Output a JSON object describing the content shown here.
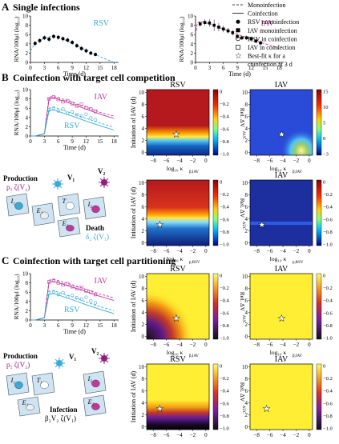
{
  "sections": {
    "a": {
      "letter": "A",
      "title": "Single infections"
    },
    "b": {
      "letter": "B",
      "title": "Coinfection with target cell competition"
    },
    "c": {
      "letter": "C",
      "title": "Coinfection with target cell partitioning"
    }
  },
  "legend": {
    "mono_line": "Monoinfection",
    "co_line": "Coinfection",
    "rsv_mono": "RSV monoinfection",
    "iav_mono": "IAV monoinfection",
    "rsv_co": "RSV in coinfection",
    "iav_co": "IAV in coinfection",
    "star_line1": "Best-fit κ for a",
    "star_line2": "coinfection at 3 d"
  },
  "timecourse": {
    "ylabel": "RNA/100μl (log₁₀)",
    "xlabel": "Time (d)",
    "yticks": [
      "0",
      "2",
      "4",
      "6",
      "8",
      "10"
    ],
    "xticks": [
      "0",
      "3",
      "6",
      "9",
      "12",
      "15",
      "18"
    ],
    "rsv_label": "RSV",
    "iav_label": "IAV",
    "colors": {
      "rsv": "#3aa9d6",
      "iav": "#c0399a"
    }
  },
  "chart_data": [
    {
      "type": "scatter",
      "title": "",
      "label": "RSV",
      "xlabel": "Time (d)",
      "ylabel": "RNA/100μl (log₁₀)",
      "xlim": [
        0,
        19
      ],
      "ylim": [
        0,
        10
      ],
      "series": [
        {
          "name": "RSV monoinfection",
          "x": [
            1,
            2,
            3,
            4,
            5,
            6,
            7,
            8,
            9,
            10,
            11,
            12,
            13,
            14
          ],
          "y": [
            4.1,
            4.7,
            5.3,
            5.0,
            5.6,
            5.4,
            5.1,
            4.8,
            4.3,
            3.6,
            3.0,
            2.5,
            2.0,
            1.7
          ],
          "err": [
            0.5,
            0.5,
            0.5,
            0.6,
            0.5,
            0.5,
            0.5,
            0.5,
            0.5,
            0.5,
            0.5,
            0.5,
            0.4,
            0.4
          ]
        }
      ],
      "model": {
        "x": [
          0,
          0.5,
          1,
          2,
          3,
          4,
          5,
          5.5,
          6,
          8,
          10,
          12,
          14,
          16,
          18
        ],
        "y": [
          2.5,
          3.3,
          3.9,
          4.7,
          5.2,
          5.5,
          5.6,
          5.55,
          5.4,
          4.6,
          3.6,
          2.6,
          1.7,
          0.8,
          0.0
        ]
      }
    },
    {
      "type": "scatter",
      "title": "",
      "label": "IAV",
      "xlabel": "Time (d)",
      "ylabel": "RNA/100μl (log₁₀)",
      "xlim": [
        0,
        19
      ],
      "ylim": [
        0,
        10
      ],
      "series": [
        {
          "name": "IAV monoinfection",
          "x": [
            1,
            2,
            3,
            4,
            5,
            6,
            7,
            8,
            9,
            10,
            11,
            12,
            13,
            14
          ],
          "y": [
            8.3,
            8.6,
            8.5,
            8.0,
            7.6,
            7.2,
            6.8,
            6.4,
            5.6,
            5.3,
            5.3,
            5.1,
            4.6,
            4.2
          ],
          "err": [
            0.6,
            0.7,
            0.8,
            1.2,
            0.9,
            0.7,
            0.6,
            0.6,
            0.5,
            0.5,
            0.5,
            0.5,
            0.5,
            0.5
          ]
        }
      ],
      "model": {
        "x": [
          0,
          0.4,
          1,
          2,
          4,
          6,
          8,
          10,
          12,
          14,
          16,
          18
        ],
        "y": [
          6.0,
          8.5,
          8.8,
          8.6,
          7.9,
          7.2,
          6.5,
          5.7,
          5.0,
          4.3,
          3.7,
          3.0
        ]
      }
    },
    {
      "type": "line",
      "title": "",
      "label": "Competition fit",
      "xlabel": "Time (d)",
      "ylabel": "RNA/100μl (log₁₀)",
      "xlim": [
        0,
        19
      ],
      "ylim": [
        0,
        10
      ],
      "series": [
        {
          "name": "IAV monoinfection",
          "x": [
            0,
            1,
            3,
            4,
            5,
            6,
            9,
            12,
            15,
            18
          ],
          "y": [
            0,
            0,
            0.5,
            8.4,
            8.5,
            8.3,
            7.3,
            6.2,
            5.1,
            4.3
          ]
        },
        {
          "name": "IAV in coinfection",
          "x": [
            0,
            1,
            3,
            4,
            5,
            6,
            9,
            12,
            15,
            18
          ],
          "y": [
            0,
            0,
            0.5,
            8.0,
            8.2,
            7.9,
            6.9,
            5.8,
            4.7,
            3.8
          ]
        },
        {
          "name": "RSV monoinfection",
          "x": [
            0,
            1,
            3,
            4,
            5,
            6,
            9,
            12,
            15,
            18
          ],
          "y": [
            0,
            0,
            0.5,
            6.0,
            6.2,
            5.9,
            4.9,
            3.8,
            2.8,
            1.9
          ]
        },
        {
          "name": "RSV in coinfection",
          "x": [
            0,
            1,
            3,
            4,
            5,
            6,
            9,
            12,
            15,
            18
          ],
          "y": [
            0,
            0,
            0.5,
            5.5,
            5.6,
            5.3,
            4.3,
            3.2,
            2.2,
            1.3
          ]
        }
      ],
      "points": {
        "iav_x": [
          4,
          5,
          6,
          7,
          8,
          9,
          10,
          11,
          12,
          13,
          14
        ],
        "iav_y": [
          8.0,
          8.4,
          7.9,
          7.4,
          7.6,
          7.0,
          6.5,
          6.8,
          6.1,
          5.8,
          5.3
        ],
        "rsv_x": [
          4,
          5,
          6,
          7,
          8,
          9,
          10,
          11,
          12,
          13,
          14
        ],
        "rsv_y": [
          5.6,
          6.0,
          5.4,
          5.8,
          4.9,
          5.2,
          4.6,
          4.3,
          4.7,
          3.9,
          3.5
        ]
      }
    },
    {
      "type": "line",
      "title": "",
      "label": "Partitioning fit",
      "xlabel": "Time (d)",
      "ylabel": "RNA/100μl (log₁₀)",
      "xlim": [
        0,
        19
      ],
      "ylim": [
        0,
        10
      ],
      "series": [
        {
          "name": "IAV monoinfection",
          "x": [
            0,
            1,
            3,
            4,
            5,
            6,
            9,
            12,
            15,
            18
          ],
          "y": [
            0,
            0,
            0.5,
            8.6,
            8.7,
            8.5,
            7.6,
            6.6,
            5.6,
            4.8
          ]
        },
        {
          "name": "IAV in coinfection",
          "x": [
            0,
            1,
            3,
            4,
            5,
            6,
            9,
            12,
            15,
            18
          ],
          "y": [
            0,
            0,
            0.5,
            8.2,
            8.3,
            8.0,
            7.1,
            6.1,
            5.1,
            4.2
          ]
        },
        {
          "name": "RSV monoinfection",
          "x": [
            0,
            1,
            3,
            4,
            5,
            6,
            9,
            12,
            15,
            18
          ],
          "y": [
            0,
            0,
            0.5,
            6.2,
            6.3,
            6.0,
            5.0,
            3.9,
            2.9,
            2.0
          ]
        },
        {
          "name": "RSV in coinfection",
          "x": [
            0,
            1,
            3,
            4,
            5,
            6,
            9,
            12,
            15,
            18
          ],
          "y": [
            0,
            0,
            0.5,
            5.6,
            5.7,
            5.4,
            4.4,
            3.3,
            2.3,
            1.4
          ]
        }
      ],
      "points": {
        "iav_x": [
          4,
          5,
          6,
          7,
          8,
          9,
          10,
          11,
          12,
          13,
          14
        ],
        "iav_y": [
          8.2,
          8.5,
          8.0,
          7.6,
          7.8,
          7.2,
          6.8,
          7.0,
          6.3,
          6.0,
          5.5
        ],
        "rsv_x": [
          4,
          5,
          6,
          7,
          8,
          9,
          10,
          11,
          12,
          13,
          14
        ],
        "rsv_y": [
          5.8,
          6.1,
          5.5,
          5.9,
          5.0,
          5.3,
          4.8,
          4.5,
          4.9,
          4.1,
          3.7
        ]
      }
    }
  ],
  "heatmaps": {
    "b_top_rsv": {
      "title": "RSV",
      "xlabel_main": "log₁₀ κ",
      "xlabel_sub": "β,IAV",
      "star": [
        -4.5,
        3
      ]
    },
    "b_top_iav": {
      "title": "IAV",
      "xlabel_main": "log₁₀ κ",
      "xlabel_sub": "β,IAV",
      "star": [
        -4.2,
        3
      ]
    },
    "b_bot_rsv": {
      "title": "",
      "xlabel_main": "log₁₀ κ",
      "xlabel_sub": "p,RSV",
      "star": [
        -7.0,
        3
      ]
    },
    "b_bot_iav": {
      "title": "IAV",
      "xlabel_main": "log₁₀ κ",
      "xlabel_sub": "p,RSV",
      "star": [
        -7.2,
        3
      ]
    },
    "c_top_rsv": {
      "title": "RSV",
      "xlabel_main": "log₁₀ κ",
      "xlabel_sub": "β,IAV",
      "star": [
        -4.5,
        3
      ]
    },
    "c_top_iav": {
      "title": "IAV",
      "xlabel_main": "log₁₀ κ",
      "xlabel_sub": "β,IAV",
      "star": [
        -4.2,
        3
      ]
    },
    "c_bot_rsv": {
      "title": "RSV",
      "xlabel_main": "log₁₀ κ",
      "xlabel_sub": "p,RSV",
      "star": [
        -7.0,
        3
      ]
    },
    "c_bot_iav": {
      "title": "IAV",
      "xlabel_main": "log₁₀ κ",
      "xlabel_sub": "p,RSV",
      "star": [
        -6.5,
        3
      ]
    },
    "ylabel": "Initiation of IAV (d)",
    "yticks": [
      "0",
      "2",
      "4",
      "6",
      "8",
      "10"
    ],
    "xticks": [
      "−8",
      "−6",
      "−4",
      "−2",
      "0"
    ],
    "cbar_main": "Rel. ΔV",
    "cbar_sub": "AUC",
    "cbar_ticks": [
      "0",
      "−0.2",
      "−0.4",
      "−0.6",
      "−0.8",
      "−1.0"
    ],
    "cbar_ticks_iav_b": [
      "15",
      "10",
      "5",
      "0",
      "−3"
    ]
  },
  "diagrams": {
    "b": {
      "production": "Production",
      "production_sub": "p₁ ζ(V₂)",
      "death": "Death",
      "death_sub": "δ₂ ζ(V₁)",
      "v1": "V₁",
      "v2": "V₂",
      "cells": [
        "I₁",
        "E₁",
        "T",
        "E₂",
        "I₂"
      ]
    },
    "c": {
      "production": "Production",
      "production_sub": "p₁ ζ(V₂)",
      "infection": "Infection",
      "infection_sub": "β₂V₂ ζ(V₁)",
      "v1": "V₁",
      "v2": "V₂",
      "cells": [
        "I₁",
        "T₁",
        "E₁",
        "T₂",
        "E₂",
        "I₂"
      ]
    }
  }
}
